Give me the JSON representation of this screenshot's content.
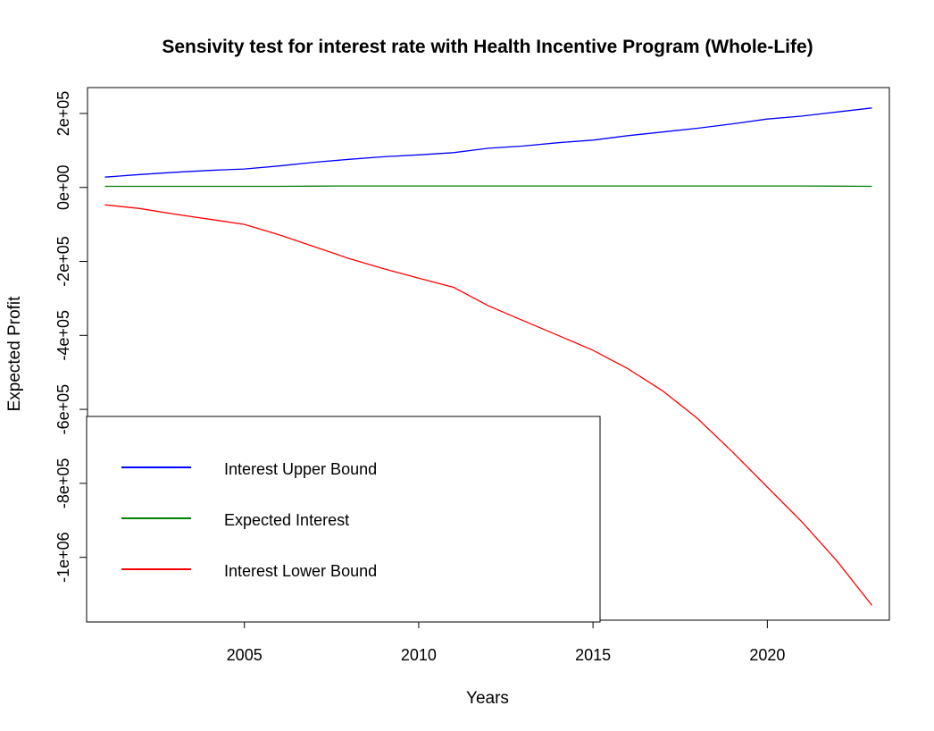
{
  "chart_data": {
    "type": "line",
    "title": "Sensivity test for interest rate with Health Incentive Program (Whole-Life)",
    "xlabel": "Years",
    "ylabel": "Expected Profit",
    "xlim": [
      2000.5,
      2023.5
    ],
    "ylim": [
      -1170000,
      270000
    ],
    "x_ticks": [
      2005,
      2010,
      2015,
      2020
    ],
    "x_tick_labels": [
      "2005",
      "2010",
      "2015",
      "2020"
    ],
    "y_ticks": [
      200000,
      0,
      -200000,
      -400000,
      -600000,
      -800000,
      -1000000
    ],
    "y_tick_labels": [
      "2e+05",
      "0e+00",
      "-2e+05",
      "-4e+05",
      "-6e+05",
      "-8e+05",
      "-1e+06"
    ],
    "grid": false,
    "legend_position": "bottom-left",
    "x": [
      2001,
      2002,
      2003,
      2004,
      2005,
      2006,
      2007,
      2008,
      2009,
      2010,
      2011,
      2012,
      2013,
      2014,
      2015,
      2016,
      2017,
      2018,
      2019,
      2020,
      2021,
      2022,
      2023
    ],
    "series": [
      {
        "name": "Interest Upper Bound",
        "color": "#0000ff",
        "values": [
          28000,
          35000,
          41000,
          46000,
          50000,
          58000,
          68000,
          76000,
          83000,
          88000,
          94000,
          106000,
          112000,
          121000,
          128000,
          140000,
          150000,
          160000,
          172000,
          185000,
          193000,
          204000,
          215000
        ]
      },
      {
        "name": "Expected Interest",
        "color": "#008000",
        "values": [
          3000,
          3000,
          3000,
          3000,
          3000,
          3000,
          3500,
          4000,
          4000,
          4000,
          4000,
          4000,
          4000,
          4000,
          4000,
          4000,
          4000,
          4000,
          4000,
          4000,
          4000,
          3500,
          3000
        ]
      },
      {
        "name": "Interest Lower Bound",
        "color": "#ff0000",
        "values": [
          -47000,
          -57000,
          -72000,
          -86000,
          -100000,
          -128000,
          -160000,
          -192000,
          -220000,
          -245000,
          -270000,
          -320000,
          -360000,
          -400000,
          -440000,
          -490000,
          -550000,
          -625000,
          -715000,
          -810000,
          -905000,
          -1010000,
          -1130000
        ]
      }
    ]
  }
}
